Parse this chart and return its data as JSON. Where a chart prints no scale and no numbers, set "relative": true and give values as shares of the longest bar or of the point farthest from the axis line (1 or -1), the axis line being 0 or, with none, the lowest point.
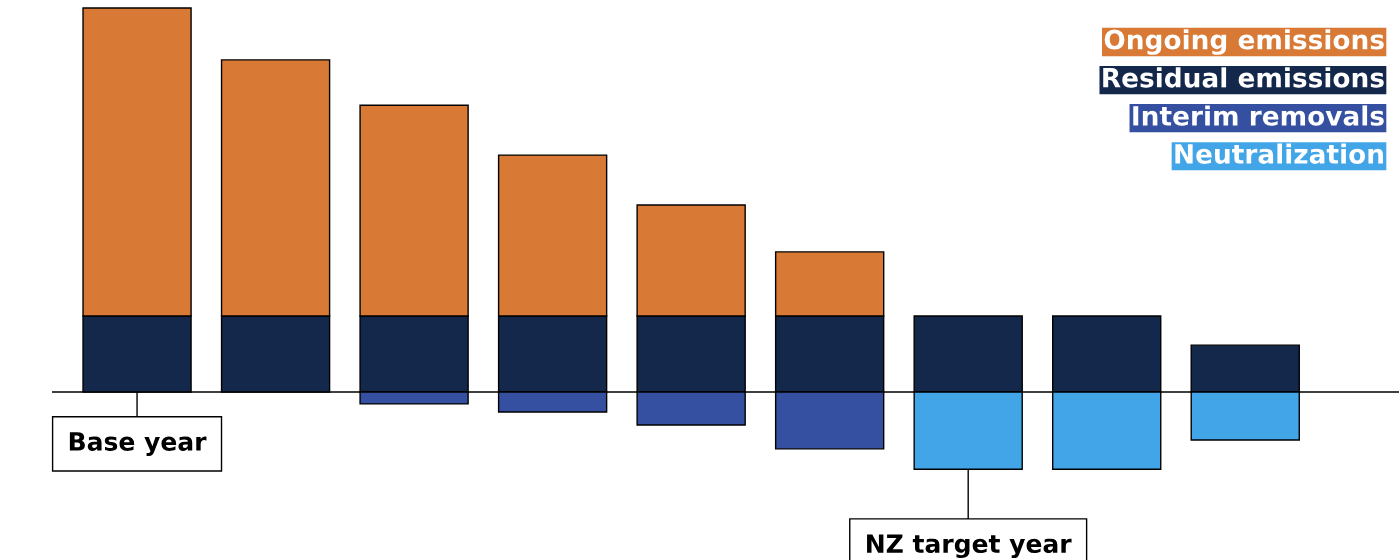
{
  "chart_data": {
    "type": "bar",
    "relative": true,
    "stacked": true,
    "categories": [
      null,
      null,
      null,
      null,
      null,
      null,
      null,
      null,
      null
    ],
    "series": [
      {
        "name": "Residual emissions",
        "color": "#14284b",
        "values": [
          0.198,
          0.198,
          0.198,
          0.198,
          0.198,
          0.198,
          0.198,
          0.198,
          0.122
        ]
      },
      {
        "name": "Ongoing emissions",
        "color": "#d87a35",
        "values": [
          0.802,
          0.667,
          0.549,
          0.419,
          0.289,
          0.167,
          0,
          0,
          0
        ]
      },
      {
        "name": "Interim removals",
        "color": "#3550a0",
        "values": [
          0,
          0,
          -0.031,
          -0.052,
          -0.086,
          -0.148,
          0,
          0,
          0
        ]
      },
      {
        "name": "Neutralization",
        "color": "#42a5e8",
        "values": [
          0,
          0,
          0,
          0,
          0,
          0,
          -0.201,
          -0.201,
          -0.125
        ]
      }
    ],
    "annotations": [
      "Base year",
      "NZ target year"
    ],
    "legend": "top right",
    "grid": false
  }
}
